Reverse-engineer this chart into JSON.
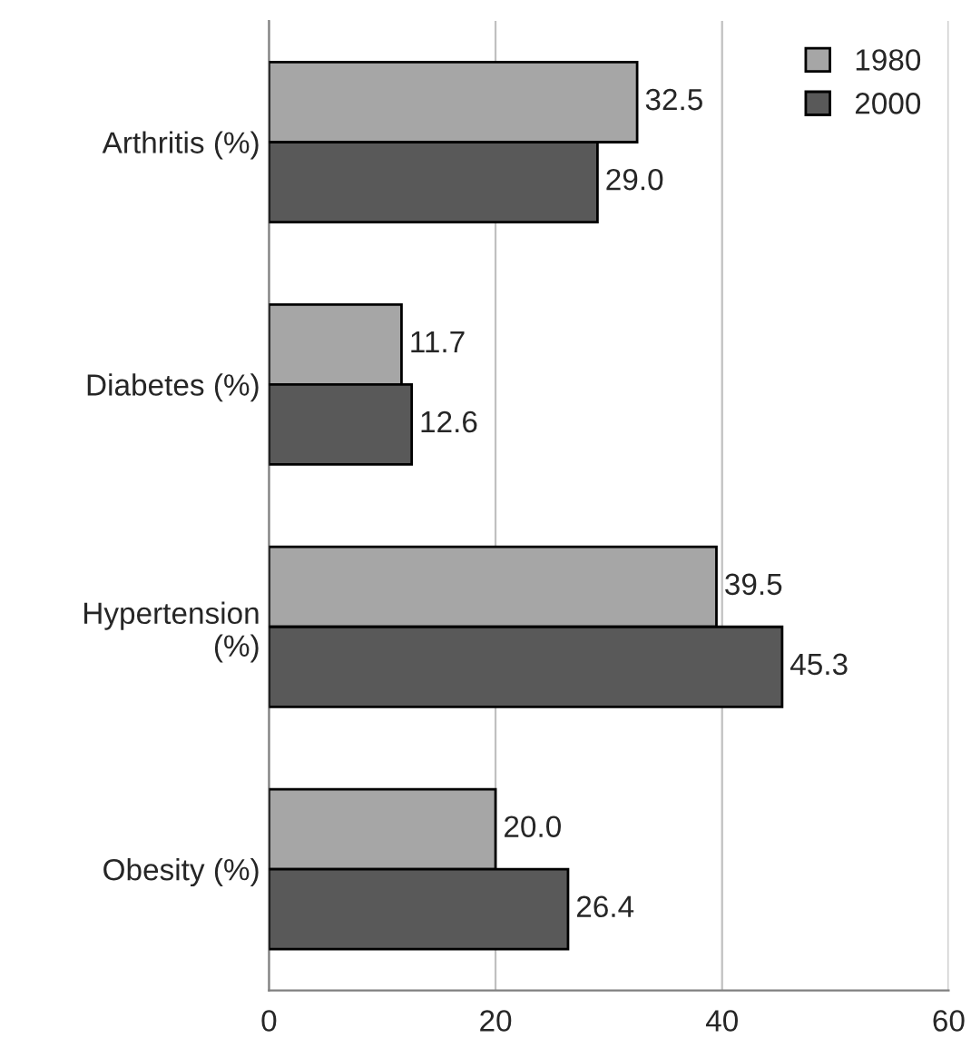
{
  "chart_data": {
    "type": "bar",
    "orientation": "horizontal",
    "categories": [
      "Arthritis (%)",
      "Diabetes (%)",
      "Hypertension (%)",
      "Obesity (%)"
    ],
    "series": [
      {
        "name": "1980",
        "color": "#a6a6a6",
        "values": [
          32.5,
          11.7,
          39.5,
          20.0
        ],
        "value_labels": [
          "32.5",
          "11.7",
          "39.5",
          "20.0"
        ]
      },
      {
        "name": "2000",
        "color": "#595959",
        "values": [
          29.0,
          12.6,
          45.3,
          26.4
        ],
        "value_labels": [
          "29.0",
          "12.6",
          "45.3",
          "26.4"
        ]
      }
    ],
    "xlim": [
      0,
      60
    ],
    "xticks": [
      0,
      20,
      40,
      60
    ],
    "grid": "x",
    "legend": "top right"
  }
}
